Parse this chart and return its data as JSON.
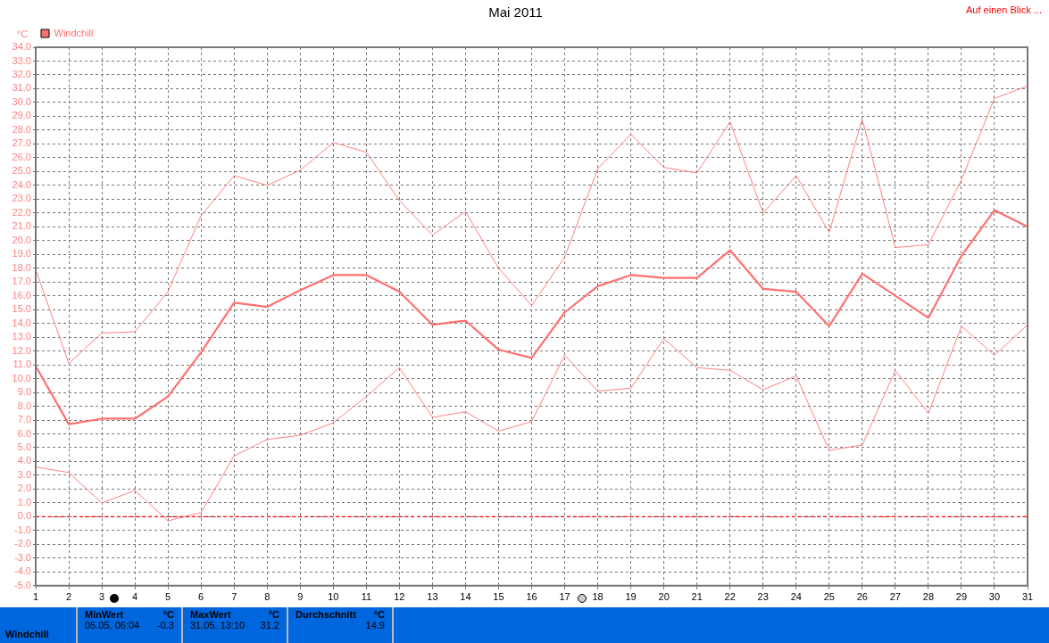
{
  "chart_data": {
    "type": "line",
    "title": "Mai 2011",
    "ylabel": "°C",
    "annotations": [
      "Auf einen Blick ...",
      "Windchill",
      "MinWert",
      "°C",
      "05.05.  06:04",
      "-0.3",
      "MaxWert",
      "°C",
      "31.05.  13:10",
      "31.2",
      "Durchschnitt",
      "°C",
      "14.9"
    ],
    "x": [
      1,
      2,
      3,
      4,
      5,
      6,
      7,
      8,
      9,
      10,
      11,
      12,
      13,
      14,
      15,
      16,
      17,
      18,
      19,
      20,
      21,
      22,
      23,
      24,
      25,
      26,
      27,
      28,
      29,
      30,
      31
    ],
    "xlim": [
      1,
      31
    ],
    "xticks": [
      1,
      2,
      3,
      4,
      5,
      6,
      7,
      8,
      9,
      10,
      11,
      12,
      13,
      14,
      15,
      16,
      17,
      18,
      19,
      20,
      21,
      22,
      23,
      24,
      25,
      26,
      27,
      28,
      29,
      30,
      31
    ],
    "ylim": [
      -5,
      34
    ],
    "yticks": [
      {
        "value": -5,
        "label": "-5.0"
      },
      {
        "value": -4,
        "label": "-4.0"
      },
      {
        "value": -3,
        "label": "-3.0"
      },
      {
        "value": -2,
        "label": "-2.0"
      },
      {
        "value": -1,
        "label": "-1.0"
      },
      {
        "value": 0,
        "label": "0.0"
      },
      {
        "value": 1,
        "label": "1.0"
      },
      {
        "value": 2,
        "label": "2.0"
      },
      {
        "value": 3,
        "label": "3.0"
      },
      {
        "value": 4,
        "label": "4.0"
      },
      {
        "value": 5,
        "label": "5.0"
      },
      {
        "value": 6,
        "label": "6.0"
      },
      {
        "value": 7,
        "label": "7.0"
      },
      {
        "value": 8,
        "label": "8.0"
      },
      {
        "value": 9,
        "label": "9.0"
      },
      {
        "value": 10,
        "label": "10.0"
      },
      {
        "value": 11,
        "label": "11.0"
      },
      {
        "value": 12,
        "label": "12.0"
      },
      {
        "value": 13,
        "label": "13.0"
      },
      {
        "value": 14,
        "label": "14.0"
      },
      {
        "value": 15,
        "label": "15.0"
      },
      {
        "value": 16,
        "label": "16.0"
      },
      {
        "value": 17,
        "label": "17.0"
      },
      {
        "value": 18,
        "label": "18.0"
      },
      {
        "value": 19,
        "label": "19.0"
      },
      {
        "value": 20,
        "label": "20.0"
      },
      {
        "value": 21,
        "label": "21.0"
      },
      {
        "value": 22,
        "label": "22.0"
      },
      {
        "value": 23,
        "label": "23.0"
      },
      {
        "value": 24,
        "label": "24.0"
      },
      {
        "value": 25,
        "label": "25.0"
      },
      {
        "value": 26,
        "label": "26.0"
      },
      {
        "value": 27,
        "label": "27.0"
      },
      {
        "value": 28,
        "label": "28.0"
      },
      {
        "value": 29,
        "label": "29.0"
      },
      {
        "value": 30,
        "label": "30.0"
      },
      {
        "value": 31,
        "label": "31.0"
      },
      {
        "value": 32,
        "label": "32.0"
      },
      {
        "value": 33,
        "label": "33.0"
      },
      {
        "value": 34,
        "label": "34.0"
      }
    ],
    "series": [
      {
        "color": "#ff8080",
        "values": [
          17.9,
          11.1,
          13.3,
          13.4,
          16.3,
          21.8,
          24.7,
          24.0,
          25.1,
          27.1,
          26.4,
          22.9,
          20.4,
          22.1,
          18.0,
          15.3,
          18.8,
          25.2,
          27.7,
          25.3,
          24.9,
          28.6,
          22.0,
          24.7,
          20.6,
          28.8,
          19.5,
          19.7,
          24.4,
          30.3,
          31.2
        ]
      },
      {
        "name": "Windchill",
        "color": "#ff7070",
        "values": [
          10.9,
          6.7,
          7.1,
          7.1,
          8.7,
          11.9,
          15.5,
          15.2,
          16.4,
          17.5,
          17.5,
          16.3,
          13.9,
          14.2,
          12.1,
          11.5,
          14.8,
          16.7,
          17.5,
          17.3,
          17.3,
          19.3,
          16.5,
          16.3,
          13.8,
          17.6,
          16.0,
          14.4,
          18.9,
          22.2,
          21.0
        ]
      },
      {
        "color": "#ff8080",
        "values": [
          3.6,
          3.2,
          1.0,
          1.9,
          -0.3,
          0.3,
          4.4,
          5.6,
          5.9,
          6.8,
          8.7,
          10.8,
          7.2,
          7.6,
          6.2,
          6.9,
          11.7,
          9.1,
          9.3,
          12.9,
          10.8,
          10.6,
          9.2,
          10.2,
          4.8,
          5.2,
          10.6,
          7.5,
          13.8,
          11.7,
          13.9
        ]
      }
    ],
    "ref_lines": [
      {
        "axis": "y",
        "value": 0,
        "color": "#ff0000",
        "line_style": "dashed"
      }
    ],
    "grid": true,
    "legend": "top left",
    "marker": "none",
    "line_style": "solid"
  }
}
